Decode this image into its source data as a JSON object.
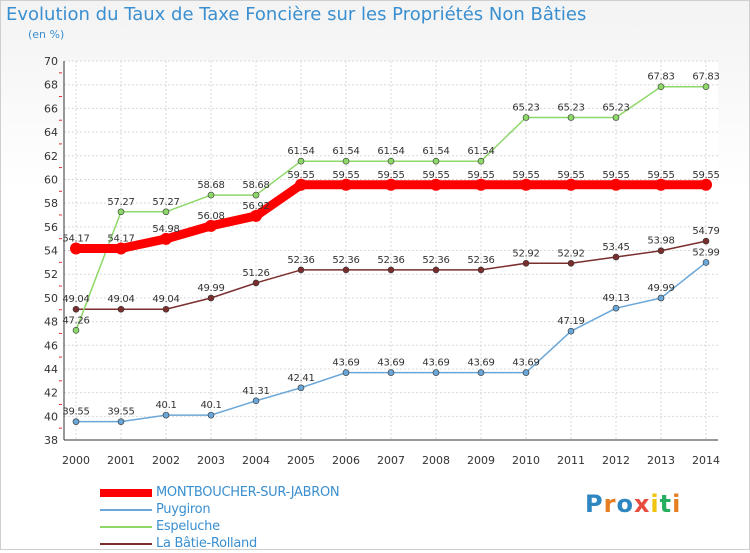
{
  "title": "Evolution du Taux de Taxe Foncière sur les Propriétés Non Bâties",
  "subtitle": "(en %)",
  "logo": {
    "text": "Proxiti",
    "letters": [
      "P",
      "r",
      "o",
      "x",
      "i",
      "t",
      "i"
    ],
    "colors": [
      "#2e86c1",
      "#e67e22",
      "#2e86c1",
      "#e74c3c",
      "#f1c40f",
      "#27ae60",
      "#e67e22"
    ]
  },
  "chart_data": {
    "type": "line",
    "x": [
      "2000",
      "2001",
      "2002",
      "2003",
      "2004",
      "2005",
      "2006",
      "2007",
      "2008",
      "2009",
      "2010",
      "2011",
      "2012",
      "2013",
      "2014"
    ],
    "ylim": [
      38,
      70
    ],
    "yticks": [
      38,
      40,
      42,
      44,
      46,
      48,
      50,
      52,
      54,
      56,
      58,
      60,
      62,
      64,
      66,
      68,
      70
    ],
    "grid": true,
    "legend_position": "bottom-left",
    "series": [
      {
        "name": "MONTBOUCHER-SUR-JABRON",
        "color": "#ff0000",
        "values": [
          54.17,
          54.17,
          54.98,
          56.08,
          56.92,
          59.55,
          59.55,
          59.55,
          59.55,
          59.55,
          59.55,
          59.55,
          59.55,
          59.55,
          59.55
        ],
        "labels": [
          "54.17",
          "54.17",
          "54.98",
          "56.08",
          "56.92",
          "59.55",
          "59.55",
          "59.55",
          "59.55",
          "59.55",
          "59.55",
          "59.55",
          "59.55",
          "59.55",
          "59.55"
        ]
      },
      {
        "name": "Puygiron",
        "color": "#6aa7d8",
        "values": [
          39.55,
          39.55,
          40.1,
          40.1,
          41.31,
          42.41,
          43.69,
          43.69,
          43.69,
          43.69,
          43.69,
          47.19,
          49.13,
          49.99,
          52.99
        ],
        "labels": [
          "39.55",
          "39.55",
          "40.1",
          "40.1",
          "41.31",
          "42.41",
          "43.69",
          "43.69",
          "43.69",
          "43.69",
          "43.69",
          "47.19",
          "49.13",
          "49.99",
          "52.99"
        ]
      },
      {
        "name": "Espeluche",
        "color": "#8ed86a",
        "values": [
          47.26,
          57.27,
          57.27,
          58.68,
          58.68,
          61.54,
          61.54,
          61.54,
          61.54,
          61.54,
          65.23,
          65.23,
          65.23,
          67.83,
          67.83
        ],
        "labels": [
          "47.26",
          "57.27",
          "57.27",
          "58.68",
          "58.68",
          "61.54",
          "61.54",
          "61.54",
          "61.54",
          "61.54",
          "65.23",
          "65.23",
          "65.23",
          "67.83",
          "67.83"
        ]
      },
      {
        "name": "La Bâtie-Rolland",
        "color": "#7b2e2e",
        "values": [
          49.04,
          49.04,
          49.04,
          49.99,
          51.26,
          52.36,
          52.36,
          52.36,
          52.36,
          52.36,
          52.92,
          52.92,
          53.45,
          53.98,
          54.79
        ],
        "labels": [
          "49.04",
          "49.04",
          "49.04",
          "49.99",
          "51.26",
          "52.36",
          "52.36",
          "52.36",
          "52.36",
          "52.36",
          "52.92",
          "52.92",
          "53.45",
          "53.98",
          "54.79"
        ]
      }
    ]
  }
}
